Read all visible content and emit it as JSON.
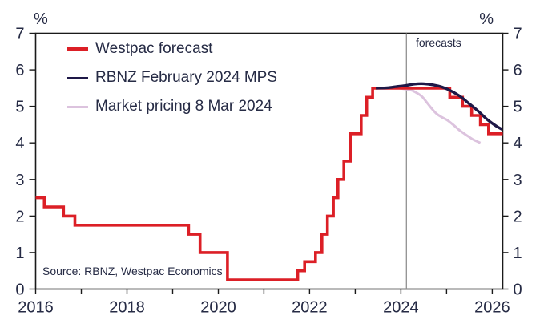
{
  "axes": {
    "unit_left": "%",
    "unit_right": "%",
    "text_color": "#262b45",
    "axis_color": "#1a1a1a"
  },
  "chart_data": {
    "type": "line",
    "title": "",
    "xlabel": "",
    "ylabel": "%",
    "x_range": [
      2016,
      2026.23
    ],
    "y_range": [
      0,
      7
    ],
    "x_major_ticks": [
      2016,
      2018,
      2020,
      2022,
      2024,
      2026
    ],
    "x_minor_ticks": [
      2017,
      2019,
      2021,
      2023,
      2025
    ],
    "y_ticks": [
      0,
      1,
      2,
      3,
      4,
      5,
      6,
      7
    ],
    "grid": false,
    "legend_position": "top-left",
    "forecast_divider": {
      "x": 2024.12,
      "label": "forecasts",
      "color": "#909090"
    },
    "source": "Source: RBNZ, Westpac Economics",
    "series": [
      {
        "name": "Westpac forecast",
        "color": "#dc1f26",
        "style": "step",
        "width": 3.6,
        "points": [
          [
            2016.0,
            2.5
          ],
          [
            2016.19,
            2.25
          ],
          [
            2016.61,
            2.0
          ],
          [
            2016.86,
            1.75
          ],
          [
            2019.35,
            1.5
          ],
          [
            2019.6,
            1.0
          ],
          [
            2020.2,
            0.25
          ],
          [
            2021.74,
            0.5
          ],
          [
            2021.89,
            0.75
          ],
          [
            2022.13,
            1.0
          ],
          [
            2022.27,
            1.5
          ],
          [
            2022.39,
            2.0
          ],
          [
            2022.52,
            2.5
          ],
          [
            2022.62,
            3.0
          ],
          [
            2022.75,
            3.5
          ],
          [
            2022.89,
            4.25
          ],
          [
            2023.13,
            4.75
          ],
          [
            2023.25,
            5.25
          ],
          [
            2023.38,
            5.5
          ],
          [
            2025.07,
            5.25
          ],
          [
            2025.35,
            5.0
          ],
          [
            2025.55,
            4.75
          ],
          [
            2025.74,
            4.5
          ],
          [
            2025.92,
            4.25
          ],
          [
            2026.23,
            4.25
          ]
        ]
      },
      {
        "name": "RBNZ February 2024 MPS",
        "color": "#1e1847",
        "style": "smooth",
        "width": 3.4,
        "points": [
          [
            2023.45,
            5.5
          ],
          [
            2023.7,
            5.51
          ],
          [
            2023.9,
            5.54
          ],
          [
            2024.1,
            5.57
          ],
          [
            2024.3,
            5.61
          ],
          [
            2024.5,
            5.62
          ],
          [
            2024.7,
            5.59
          ],
          [
            2024.9,
            5.53
          ],
          [
            2025.1,
            5.42
          ],
          [
            2025.3,
            5.27
          ],
          [
            2025.5,
            5.07
          ],
          [
            2025.7,
            4.86
          ],
          [
            2025.9,
            4.63
          ],
          [
            2026.1,
            4.45
          ],
          [
            2026.22,
            4.37
          ]
        ]
      },
      {
        "name": "Market pricing 8 Mar 2024",
        "color": "#dcc3de",
        "style": "smooth",
        "width": 3,
        "points": [
          [
            2023.95,
            5.5
          ],
          [
            2024.2,
            5.45
          ],
          [
            2024.33,
            5.38
          ],
          [
            2024.46,
            5.27
          ],
          [
            2024.56,
            5.12
          ],
          [
            2024.68,
            4.93
          ],
          [
            2024.78,
            4.8
          ],
          [
            2024.9,
            4.7
          ],
          [
            2025.02,
            4.62
          ],
          [
            2025.16,
            4.48
          ],
          [
            2025.3,
            4.33
          ],
          [
            2025.45,
            4.2
          ],
          [
            2025.6,
            4.08
          ],
          [
            2025.74,
            4.0
          ]
        ]
      }
    ]
  }
}
